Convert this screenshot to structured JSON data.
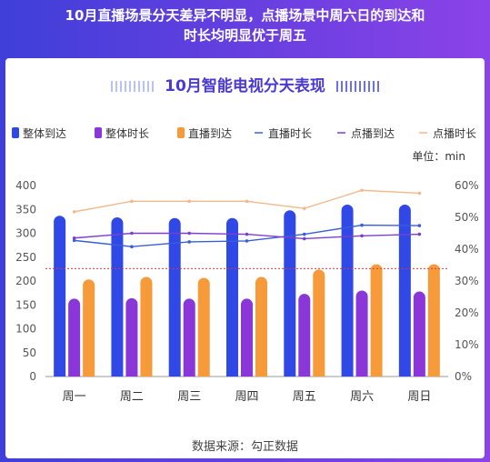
{
  "headline": {
    "line1": "10月直播场景分天差异不明显，点播场景中周六日的到达和",
    "line2": "时长均明显优于周五"
  },
  "chart_title": "10月智能电视分天表现",
  "unit_label": "单位：min",
  "source": "数据来源：勾正数据",
  "colors": {
    "background": "#5a3fe0",
    "total_reach": "#2f48e6",
    "total_duration": "#8a36d8",
    "live_reach": "#f79a3a",
    "live_duration": "#3a5ed8",
    "vod_reach": "#7b3fd0",
    "vod_duration": "#f4b98a",
    "reference_line": "#d83a4a"
  },
  "chart_data": {
    "type": "bar",
    "categories": [
      "周一",
      "周二",
      "周三",
      "周四",
      "周五",
      "周六",
      "周日"
    ],
    "y_left": {
      "ticks": [
        "0",
        "50",
        "100",
        "150",
        "200",
        "250",
        "300",
        "350",
        "400"
      ],
      "range": [
        0,
        400
      ]
    },
    "y_right": {
      "ticks": [
        "0%",
        "10%",
        "20%",
        "30%",
        "40%",
        "50%",
        "60%"
      ],
      "range": [
        0,
        60
      ]
    },
    "series": [
      {
        "name": "整体到达",
        "kind": "bar",
        "axis": "right",
        "color_key": "total_reach",
        "values": [
          50.5,
          50,
          49.8,
          49.8,
          52.2,
          54,
          54
        ]
      },
      {
        "name": "整体时长",
        "kind": "bar",
        "axis": "left",
        "color_key": "total_duration",
        "values": [
          163,
          164,
          163,
          163,
          173,
          180,
          178
        ]
      },
      {
        "name": "直播到达",
        "kind": "bar",
        "axis": "right",
        "color_key": "live_reach",
        "values": [
          30.5,
          31.3,
          31,
          31.3,
          33.6,
          35.3,
          35.3
        ]
      },
      {
        "name": "直播时长",
        "kind": "line",
        "axis": "left",
        "color_key": "live_duration",
        "values": [
          285,
          272,
          282,
          284,
          298,
          317,
          316
        ]
      },
      {
        "name": "点播到达",
        "kind": "line",
        "axis": "right",
        "color_key": "vod_reach",
        "values": [
          43.5,
          45,
          45,
          44.7,
          43.3,
          44.2,
          44.7
        ]
      },
      {
        "name": "点播时长",
        "kind": "line",
        "axis": "left",
        "color_key": "vod_duration",
        "values": [
          345,
          367,
          367,
          367,
          352,
          390,
          384
        ]
      }
    ],
    "reference_line": {
      "axis": "left",
      "value": 226
    },
    "legend_position": "top",
    "grid": false
  }
}
